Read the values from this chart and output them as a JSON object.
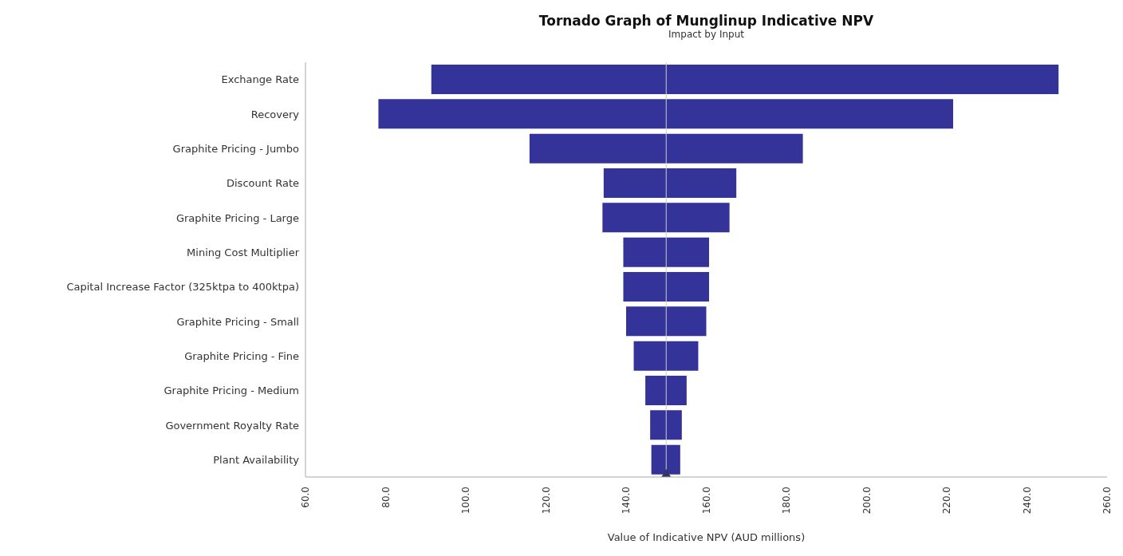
{
  "chart_data": {
    "type": "bar",
    "orientation": "horizontal",
    "title": "Tornado Graph of Munglinup Indicative NPV",
    "subtitle": "Impact by Input",
    "xlabel": "Value of Indicative NPV (AUD millions)",
    "categories": [
      "Exchange Rate",
      "Recovery",
      "Graphite Pricing - Jumbo",
      "Discount Rate",
      "Graphite Pricing - Large",
      "Mining Cost Multiplier",
      "Capital Increase Factor (325ktpa to 400ktpa)",
      "Graphite Pricing - Small",
      "Graphite Pricing - Fine",
      "Graphite Pricing - Medium",
      "Government Royalty Rate",
      "Plant Availability"
    ],
    "base": [
      91.4,
      78.2,
      115.9,
      134.4,
      134.1,
      139.3,
      139.3,
      140.0,
      141.9,
      144.8,
      146.0,
      146.3
    ],
    "values": [
      156.5,
      143.4,
      68.2,
      33.1,
      31.7,
      21.4,
      21.4,
      20.0,
      16.1,
      10.3,
      7.9,
      7.2
    ],
    "color": "#333399",
    "xlim": [
      60,
      260
    ],
    "xticks": [
      {
        "value": 60,
        "label": "60.0"
      },
      {
        "value": 80,
        "label": "80.0"
      },
      {
        "value": 100,
        "label": "100.0"
      },
      {
        "value": 120,
        "label": "120.0"
      },
      {
        "value": 140,
        "label": "140.0"
      },
      {
        "value": 160,
        "label": "160.0"
      },
      {
        "value": 180,
        "label": "180.0"
      },
      {
        "value": 200,
        "label": "200.0"
      },
      {
        "value": 220,
        "label": "220.0"
      },
      {
        "value": 240,
        "label": "240.0"
      },
      {
        "value": 260,
        "label": "260.0"
      }
    ],
    "ref_lines": [
      {
        "axis": "x",
        "value": 150,
        "color": "#cccccc"
      }
    ],
    "grid": false,
    "legend": false
  }
}
